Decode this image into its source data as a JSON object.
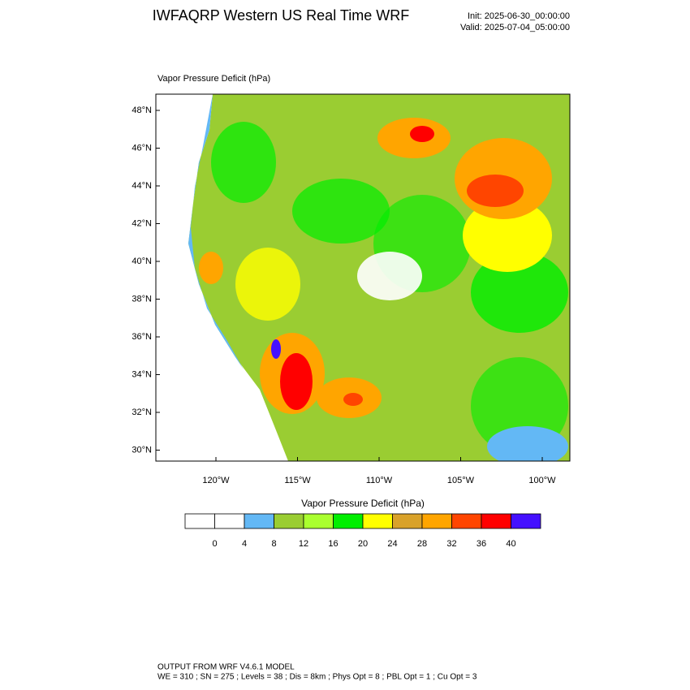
{
  "header": {
    "title": "IWFAQRP Western US Real Time WRF",
    "init": "Init: 2025-06-30_00:00:00",
    "valid": "Valid: 2025-07-04_05:00:00"
  },
  "map": {
    "field_label": "Vapor Pressure Deficit   (hPa)",
    "lat_labels": [
      "48°N",
      "46°N",
      "44°N",
      "42°N",
      "40°N",
      "38°N",
      "36°N",
      "34°N",
      "32°N",
      "30°N"
    ],
    "lon_labels": [
      "120°W",
      "115°W",
      "110°W",
      "105°W",
      "100°W"
    ]
  },
  "colorbar": {
    "title": "Vapor Pressure Deficit  (hPa)",
    "colors": [
      "#ffffff",
      "#ffffff",
      "#63b8f5",
      "#9acd32",
      "#aaff2f",
      "#00ee00",
      "#ffff00",
      "#d9a22a",
      "#ffa500",
      "#ff4500",
      "#ff0000",
      "#4410ff"
    ],
    "labels": [
      "0",
      "4",
      "8",
      "12",
      "16",
      "20",
      "24",
      "28",
      "32",
      "36",
      "40"
    ]
  },
  "footer": {
    "line1": "OUTPUT FROM WRF V4.6.1 MODEL",
    "line2": "WE = 310 ; SN = 275 ; Levels = 38 ; Dis = 8km ; Phys Opt = 8 ; PBL Opt = 1 ; Cu Opt = 3"
  }
}
